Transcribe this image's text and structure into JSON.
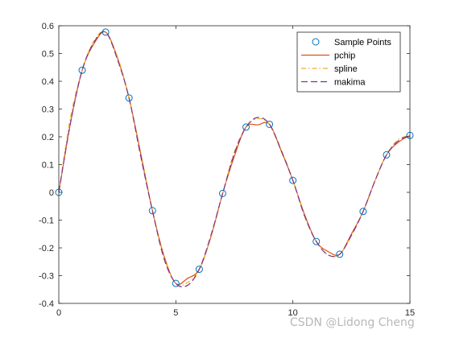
{
  "chart_data": {
    "type": "line",
    "title": "",
    "xlabel": "",
    "ylabel": "",
    "xlim": [
      0,
      15
    ],
    "ylim": [
      -0.4,
      0.6
    ],
    "xticks": [
      0,
      5,
      10,
      15
    ],
    "yticks": [
      -0.4,
      -0.3,
      -0.2,
      -0.1,
      0,
      0.1,
      0.2,
      0.3,
      0.4,
      0.5,
      0.6
    ],
    "grid": false,
    "legend_position": "top-right",
    "series": [
      {
        "name": "Sample Points",
        "kind": "markers",
        "marker": "circle",
        "color": "#0072BD",
        "x": [
          0,
          1,
          2,
          3,
          4,
          5,
          6,
          7,
          8,
          9,
          10,
          11,
          12,
          13,
          14,
          15
        ],
        "y": [
          0,
          0.44,
          0.577,
          0.34,
          -0.066,
          -0.328,
          -0.277,
          -0.004,
          0.235,
          0.245,
          0.043,
          -0.177,
          -0.223,
          -0.069,
          0.135,
          0.205
        ]
      },
      {
        "name": "pchip",
        "kind": "line",
        "dash": "solid",
        "color": "#D95319",
        "x": [
          0,
          0.5,
          1,
          1.5,
          2,
          2.5,
          3,
          3.5,
          4,
          4.5,
          5,
          5.5,
          6,
          6.5,
          7,
          7.5,
          8,
          8.5,
          9,
          9.5,
          10,
          10.5,
          11,
          11.5,
          12,
          12.5,
          13,
          13.5,
          14,
          14.5,
          15
        ],
        "y": [
          0,
          0.25,
          0.44,
          0.535,
          0.577,
          0.485,
          0.34,
          0.14,
          -0.066,
          -0.23,
          -0.328,
          -0.31,
          -0.277,
          -0.16,
          -0.004,
          0.13,
          0.235,
          0.243,
          0.245,
          0.15,
          0.043,
          -0.08,
          -0.177,
          -0.213,
          -0.223,
          -0.15,
          -0.069,
          0.04,
          0.135,
          0.18,
          0.205
        ]
      },
      {
        "name": "spline",
        "kind": "line",
        "dash": "dashdot",
        "color": "#EDB120",
        "x": [
          0,
          0.5,
          1,
          1.5,
          2,
          2.5,
          3,
          3.5,
          4,
          4.5,
          5,
          5.5,
          6,
          6.5,
          7,
          7.5,
          8,
          8.5,
          9,
          9.5,
          10,
          10.5,
          11,
          11.5,
          12,
          12.5,
          13,
          13.5,
          14,
          14.5,
          15
        ],
        "y": [
          0,
          0.27,
          0.44,
          0.545,
          0.577,
          0.49,
          0.34,
          0.13,
          -0.066,
          -0.235,
          -0.328,
          -0.325,
          -0.277,
          -0.16,
          -0.004,
          0.145,
          0.235,
          0.265,
          0.245,
          0.155,
          0.043,
          -0.085,
          -0.177,
          -0.225,
          -0.223,
          -0.155,
          -0.069,
          0.04,
          0.135,
          0.19,
          0.205
        ]
      },
      {
        "name": "makima",
        "kind": "line",
        "dash": "dashed",
        "color": "#7E2F8E",
        "x": [
          0,
          0.5,
          1,
          1.5,
          2,
          2.5,
          3,
          3.5,
          4,
          4.5,
          5,
          5.5,
          6,
          6.5,
          7,
          7.5,
          8,
          8.5,
          9,
          9.5,
          10,
          10.5,
          11,
          11.5,
          12,
          12.5,
          13,
          13.5,
          14,
          14.5,
          15
        ],
        "y": [
          0,
          0.25,
          0.44,
          0.54,
          0.577,
          0.48,
          0.34,
          0.13,
          -0.066,
          -0.24,
          -0.328,
          -0.335,
          -0.277,
          -0.155,
          -0.004,
          0.14,
          0.235,
          0.27,
          0.245,
          0.15,
          0.043,
          -0.085,
          -0.177,
          -0.225,
          -0.223,
          -0.155,
          -0.069,
          0.04,
          0.135,
          0.185,
          0.205
        ]
      }
    ]
  },
  "colors": {
    "axis": "#262626",
    "legend_border": "#262626",
    "marker_edge": "#0072BD",
    "watermark": "#b8b8b8"
  },
  "watermark": "CSDN @Lidong Cheng"
}
